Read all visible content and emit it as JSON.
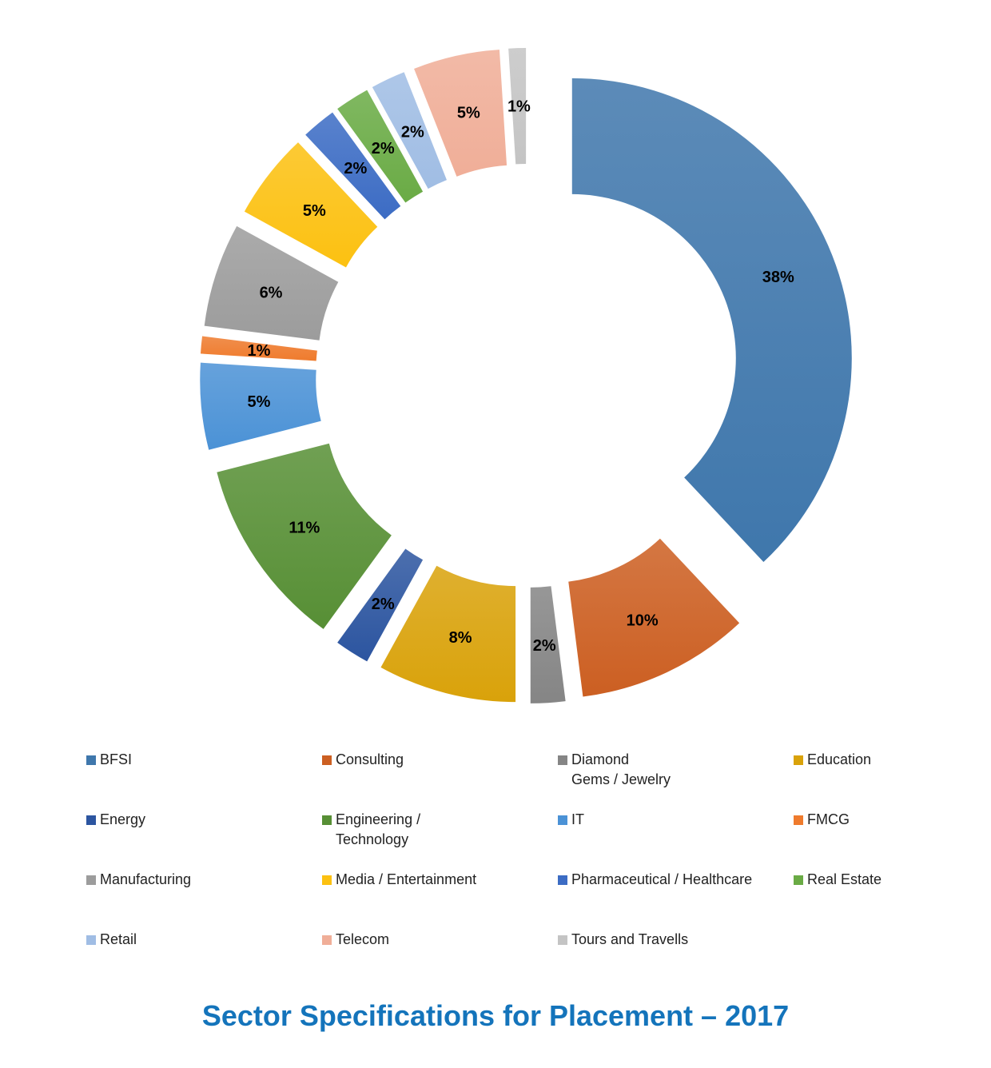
{
  "chart_data": {
    "type": "pie",
    "variant": "exploded-donut",
    "title": "Sector Specifications for Placement – 2017",
    "unit": "%",
    "categories": [
      "BFSI",
      "Consulting",
      "Diamond\nGems / Jewelry",
      "Education",
      "Energy",
      "Engineering /\nTechnology",
      "IT",
      "FMCG",
      "Manufacturing",
      "Media / Entertainment",
      "Pharmaceutical / Healthcare",
      "Real Estate",
      "Retail",
      "Telecom",
      "Tours and Travells"
    ],
    "values": [
      38,
      10,
      2,
      8,
      2,
      11,
      5,
      1,
      6,
      5,
      2,
      2,
      2,
      5,
      1
    ],
    "data_labels": [
      "38%",
      "10%",
      "2%",
      "8%",
      "2%",
      "11%",
      "5%",
      "1%",
      "6%",
      "5%",
      "2%",
      "2%",
      "2%",
      "5%",
      "1%"
    ],
    "colors": [
      "#3f77ac",
      "#cc5f22",
      "#858585",
      "#d9a20a",
      "#2c55a0",
      "#578f35",
      "#4b92d6",
      "#ef7b2d",
      "#9c9c9c",
      "#fcc111",
      "#3c6cc4",
      "#6aab45",
      "#a0bde4",
      "#f0ae98",
      "#c4c4c4"
    ],
    "legend_position": "bottom"
  }
}
